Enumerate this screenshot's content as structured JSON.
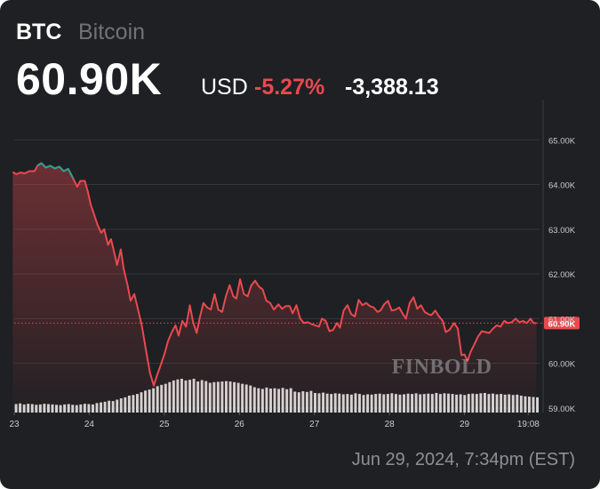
{
  "header": {
    "symbol": "BTC",
    "name": "Bitcoin",
    "price": "60.90K",
    "currency": "USD",
    "change_percent": "-5.27%",
    "change_value": "-3,388.13"
  },
  "footer": {
    "timestamp": "Jun 29, 2024, 7:34pm (EST)"
  },
  "watermark": "FINBOLD",
  "colors": {
    "background": "#1e2023",
    "down": "#e9494f",
    "up": "#2aa091",
    "volume": "#d6d6d6",
    "grid": "#34373b",
    "axis_text": "#c9cbce"
  },
  "chart_data": {
    "type": "line",
    "ylim": [
      58.9,
      65.9
    ],
    "xlim": [
      23,
      30
    ],
    "y_ticks": [
      65.0,
      64.0,
      63.0,
      62.0,
      61.0,
      60.0,
      59.0
    ],
    "y_tick_labels": [
      "65.00K",
      "64.00K",
      "63.00K",
      "62.00K",
      "61.00K",
      "60.00K",
      "59.00K"
    ],
    "x_ticks": [
      23,
      24,
      25,
      26,
      27,
      28,
      29,
      29.85
    ],
    "x_tick_labels": [
      "23",
      "24",
      "25",
      "26",
      "27",
      "28",
      "29",
      "19:08"
    ],
    "last_value": 60.9,
    "last_label": "60.90K",
    "series": [
      {
        "values": [
          [
            22.98,
            64.28
          ],
          [
            23.03,
            64.23
          ],
          [
            23.08,
            64.27
          ],
          [
            23.14,
            64.25
          ],
          [
            23.2,
            64.3
          ],
          [
            23.27,
            64.3
          ],
          [
            23.31,
            64.42
          ],
          [
            23.36,
            64.48
          ],
          [
            23.42,
            64.38
          ],
          [
            23.48,
            64.42
          ],
          [
            23.54,
            64.36
          ],
          [
            23.6,
            64.4
          ],
          [
            23.66,
            64.3
          ],
          [
            23.72,
            64.35
          ],
          [
            23.78,
            64.15
          ],
          [
            23.84,
            63.95
          ],
          [
            23.88,
            64.08
          ],
          [
            23.94,
            64.08
          ],
          [
            23.98,
            63.85
          ],
          [
            24.02,
            63.55
          ],
          [
            24.06,
            63.35
          ],
          [
            24.11,
            63.1
          ],
          [
            24.16,
            62.92
          ],
          [
            24.2,
            63.0
          ],
          [
            24.25,
            62.65
          ],
          [
            24.29,
            62.78
          ],
          [
            24.33,
            62.5
          ],
          [
            24.37,
            62.2
          ],
          [
            24.42,
            62.55
          ],
          [
            24.46,
            62.1
          ],
          [
            24.51,
            61.75
          ],
          [
            24.55,
            61.4
          ],
          [
            24.6,
            61.55
          ],
          [
            24.65,
            61.2
          ],
          [
            24.7,
            60.85
          ],
          [
            24.76,
            60.25
          ],
          [
            24.81,
            59.78
          ],
          [
            24.86,
            59.5
          ],
          [
            24.9,
            59.72
          ],
          [
            24.95,
            59.95
          ],
          [
            25.0,
            60.2
          ],
          [
            25.05,
            60.5
          ],
          [
            25.1,
            60.7
          ],
          [
            25.15,
            60.85
          ],
          [
            25.19,
            60.62
          ],
          [
            25.24,
            60.95
          ],
          [
            25.29,
            60.82
          ],
          [
            25.34,
            61.3
          ],
          [
            25.38,
            60.95
          ],
          [
            25.43,
            60.68
          ],
          [
            25.47,
            61.0
          ],
          [
            25.52,
            61.35
          ],
          [
            25.57,
            61.25
          ],
          [
            25.62,
            61.2
          ],
          [
            25.67,
            61.55
          ],
          [
            25.72,
            61.2
          ],
          [
            25.77,
            61.15
          ],
          [
            25.82,
            61.5
          ],
          [
            25.87,
            61.75
          ],
          [
            25.92,
            61.5
          ],
          [
            25.96,
            61.45
          ],
          [
            26.01,
            61.88
          ],
          [
            26.06,
            61.55
          ],
          [
            26.11,
            61.5
          ],
          [
            26.16,
            61.75
          ],
          [
            26.21,
            61.85
          ],
          [
            26.26,
            61.72
          ],
          [
            26.31,
            61.65
          ],
          [
            26.36,
            61.4
          ],
          [
            26.41,
            61.35
          ],
          [
            26.46,
            61.2
          ],
          [
            26.52,
            61.32
          ],
          [
            26.57,
            61.22
          ],
          [
            26.62,
            61.28
          ],
          [
            26.67,
            61.28
          ],
          [
            26.71,
            61.12
          ],
          [
            26.76,
            61.3
          ],
          [
            26.81,
            61.0
          ],
          [
            26.86,
            60.9
          ],
          [
            26.91,
            60.92
          ],
          [
            26.96,
            60.88
          ],
          [
            27.01,
            60.85
          ],
          [
            27.06,
            60.82
          ],
          [
            27.1,
            61.0
          ],
          [
            27.15,
            60.95
          ],
          [
            27.2,
            60.72
          ],
          [
            27.25,
            60.75
          ],
          [
            27.3,
            60.9
          ],
          [
            27.34,
            60.8
          ],
          [
            27.39,
            61.18
          ],
          [
            27.44,
            61.3
          ],
          [
            27.49,
            61.1
          ],
          [
            27.54,
            61.05
          ],
          [
            27.59,
            61.42
          ],
          [
            27.64,
            61.3
          ],
          [
            27.69,
            61.35
          ],
          [
            27.74,
            61.28
          ],
          [
            27.79,
            61.25
          ],
          [
            27.84,
            61.15
          ],
          [
            27.88,
            61.18
          ],
          [
            27.93,
            61.32
          ],
          [
            27.98,
            61.4
          ],
          [
            28.03,
            61.18
          ],
          [
            28.08,
            61.2
          ],
          [
            28.13,
            61.25
          ],
          [
            28.18,
            61.1
          ],
          [
            28.22,
            61.0
          ],
          [
            28.27,
            61.35
          ],
          [
            28.32,
            61.48
          ],
          [
            28.37,
            61.22
          ],
          [
            28.42,
            61.3
          ],
          [
            28.47,
            61.15
          ],
          [
            28.52,
            61.1
          ],
          [
            28.56,
            61.08
          ],
          [
            28.61,
            61.18
          ],
          [
            28.66,
            61.05
          ],
          [
            28.71,
            60.95
          ],
          [
            28.75,
            60.7
          ],
          [
            28.8,
            60.75
          ],
          [
            28.86,
            60.9
          ],
          [
            28.91,
            60.78
          ],
          [
            28.96,
            60.18
          ],
          [
            29.0,
            60.2
          ],
          [
            29.04,
            60.05
          ],
          [
            29.08,
            60.25
          ],
          [
            29.13,
            60.42
          ],
          [
            29.18,
            60.6
          ],
          [
            29.23,
            60.72
          ],
          [
            29.28,
            60.7
          ],
          [
            29.33,
            60.68
          ],
          [
            29.38,
            60.78
          ],
          [
            29.43,
            60.85
          ],
          [
            29.48,
            60.82
          ],
          [
            29.53,
            60.95
          ],
          [
            29.58,
            60.9
          ],
          [
            29.63,
            60.92
          ],
          [
            29.68,
            61.0
          ],
          [
            29.73,
            60.92
          ],
          [
            29.78,
            60.95
          ],
          [
            29.83,
            60.9
          ],
          [
            29.88,
            61.0
          ],
          [
            29.92,
            60.9
          ],
          [
            29.96,
            60.9
          ]
        ]
      }
    ],
    "volume": [
      0.25,
      0.27,
      0.24,
      0.26,
      0.25,
      0.23,
      0.24,
      0.26,
      0.25,
      0.24,
      0.23,
      0.22,
      0.24,
      0.25,
      0.23,
      0.22,
      0.24,
      0.26,
      0.25,
      0.24,
      0.28,
      0.3,
      0.32,
      0.35,
      0.34,
      0.38,
      0.42,
      0.45,
      0.5,
      0.52,
      0.55,
      0.6,
      0.65,
      0.68,
      0.72,
      0.78,
      0.82,
      0.85,
      0.9,
      0.95,
      0.98,
      1.0,
      0.95,
      0.97,
      1.0,
      0.92,
      0.96,
      0.93,
      0.88,
      0.9,
      0.91,
      0.92,
      0.93,
      0.92,
      0.9,
      0.88,
      0.85,
      0.83,
      0.8,
      0.75,
      0.72,
      0.7,
      0.74,
      0.71,
      0.72,
      0.7,
      0.73,
      0.69,
      0.72,
      0.62,
      0.6,
      0.63,
      0.61,
      0.64,
      0.58,
      0.57,
      0.59,
      0.56,
      0.55,
      0.57,
      0.56,
      0.54,
      0.55,
      0.53,
      0.57,
      0.55,
      0.52,
      0.54,
      0.53,
      0.55,
      0.56,
      0.54,
      0.55,
      0.57,
      0.55,
      0.53,
      0.54,
      0.56,
      0.55,
      0.57,
      0.54,
      0.55,
      0.56,
      0.55,
      0.58,
      0.55,
      0.57,
      0.56,
      0.55,
      0.53,
      0.54,
      0.52,
      0.55,
      0.56,
      0.55,
      0.57,
      0.58,
      0.55,
      0.56,
      0.54,
      0.55,
      0.53,
      0.54,
      0.52,
      0.53,
      0.5,
      0.48,
      0.47,
      0.46,
      0.45
    ]
  }
}
